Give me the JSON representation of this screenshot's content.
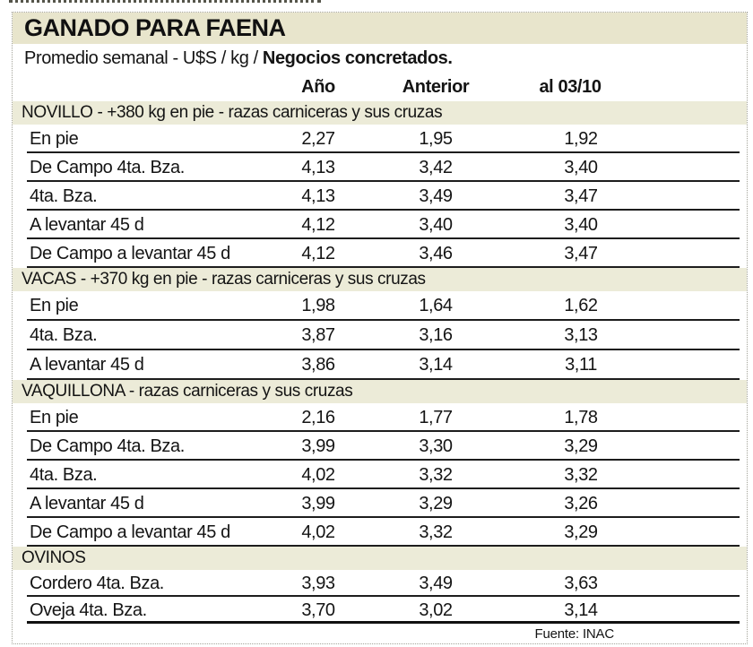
{
  "header": {
    "title": "GANADO PARA FAENA",
    "subtitle_regular": "Promedio semanal - U$S / kg / ",
    "subtitle_bold": "Negocios concretados."
  },
  "chart_data": {
    "type": "table",
    "title": "GANADO PARA FAENA",
    "subtitle": "Promedio semanal - U$S / kg / Negocios concretados.",
    "columns": [
      "Año",
      "Anterior",
      "al 03/10"
    ],
    "sections": [
      {
        "header": "NOVILLO - +380 kg en pie - razas carniceras y sus cruzas",
        "rows": [
          {
            "label": "En pie",
            "values": [
              "2,27",
              "1,95",
              "1,92"
            ]
          },
          {
            "label": "De Campo 4ta. Bza.",
            "values": [
              "4,13",
              "3,42",
              "3,40"
            ]
          },
          {
            "label": "4ta. Bza.",
            "values": [
              "4,13",
              "3,49",
              "3,47"
            ]
          },
          {
            "label": "A levantar 45 d",
            "values": [
              "4,12",
              "3,40",
              "3,40"
            ]
          },
          {
            "label": "De Campo a levantar 45 d",
            "values": [
              "4,12",
              "3,46",
              "3,47"
            ]
          }
        ]
      },
      {
        "header": "VACAS - +370 kg en pie - razas carniceras y sus cruzas",
        "rows": [
          {
            "label": "En pie",
            "values": [
              "1,98",
              "1,64",
              "1,62"
            ]
          },
          {
            "label": "4ta. Bza.",
            "values": [
              "3,87",
              "3,16",
              "3,13"
            ]
          },
          {
            "label": "A levantar 45 d",
            "values": [
              "3,86",
              "3,14",
              "3,11"
            ]
          }
        ]
      },
      {
        "header": "VAQUILLONA - razas carniceras y sus cruzas",
        "rows": [
          {
            "label": "En pie",
            "values": [
              "2,16",
              "1,77",
              "1,78"
            ]
          },
          {
            "label": "De Campo 4ta. Bza.",
            "values": [
              "3,99",
              "3,30",
              "3,29"
            ]
          },
          {
            "label": "4ta. Bza.",
            "values": [
              "4,02",
              "3,32",
              "3,32"
            ]
          },
          {
            "label": "A levantar 45 d",
            "values": [
              "3,99",
              "3,29",
              "3,26"
            ]
          },
          {
            "label": "De Campo a levantar 45 d",
            "values": [
              "4,02",
              "3,32",
              "3,29"
            ]
          }
        ]
      },
      {
        "header": "OVINOS",
        "rows": [
          {
            "label": "Cordero 4ta. Bza.",
            "values": [
              "3,93",
              "3,49",
              "3,63"
            ]
          },
          {
            "label": "Oveja 4ta. Bza.",
            "values": [
              "3,70",
              "3,02",
              "3,14"
            ]
          }
        ]
      }
    ],
    "source": "Fuente: INAC"
  },
  "colors": {
    "title_band": "#e8e5cc",
    "section_band": "#ecebd8",
    "row_rule": "#1d1d1d",
    "dotted_border": "#a3a399",
    "text": "#141414"
  }
}
